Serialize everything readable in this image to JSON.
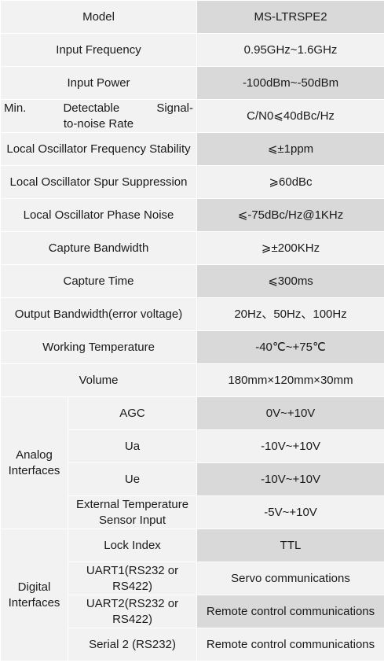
{
  "rows": [
    {
      "label": "Model",
      "value": "MS-LTRSPE2"
    },
    {
      "label": "Input Frequency",
      "value": "0.95GHz~1.6GHz"
    },
    {
      "label": "Input Power",
      "value": "-100dBm~-50dBm"
    },
    {
      "label_line1": "Min. Detectable Signal-",
      "label_line2": "to-noise Rate",
      "value": "C/N0⩽40dBc/Hz"
    },
    {
      "label": "Local Oscillator Frequency Stability",
      "value": "⩽±1ppm"
    },
    {
      "label": "Local Oscillator Spur Suppression",
      "value": "⩾60dBc"
    },
    {
      "label": "Local Oscillator Phase Noise",
      "value": "⩽-75dBc/Hz@1KHz"
    },
    {
      "label": "Capture Bandwidth",
      "value": "⩾±200KHz"
    },
    {
      "label": "Capture Time",
      "value": "⩽300ms"
    },
    {
      "label": "Output Bandwidth(error voltage)",
      "value": "20Hz、50Hz、100Hz"
    },
    {
      "label": "Working Temperature",
      "value": "-40℃~+75℃"
    },
    {
      "label": "Volume",
      "value": "180mm×120mm×30mm"
    }
  ],
  "analog": {
    "group": "Analog Interfaces",
    "items": [
      {
        "label": "AGC",
        "value": "0V~+10V"
      },
      {
        "label": "Ua",
        "value": "-10V~+10V"
      },
      {
        "label": "Ue",
        "value": "-10V~+10V"
      },
      {
        "label": "External Temperature Sensor Input",
        "value": "-5V~+10V"
      }
    ]
  },
  "digital": {
    "group": "Digital Interfaces",
    "items": [
      {
        "label": "Lock Index",
        "value": "TTL"
      },
      {
        "label": "UART1(RS232 or RS422)",
        "value": "Servo communications"
      },
      {
        "label": "UART2(RS232 or RS422)",
        "value": "Remote control communications"
      },
      {
        "label": "Serial 2 (RS232)",
        "value": "Remote control communications"
      }
    ]
  }
}
